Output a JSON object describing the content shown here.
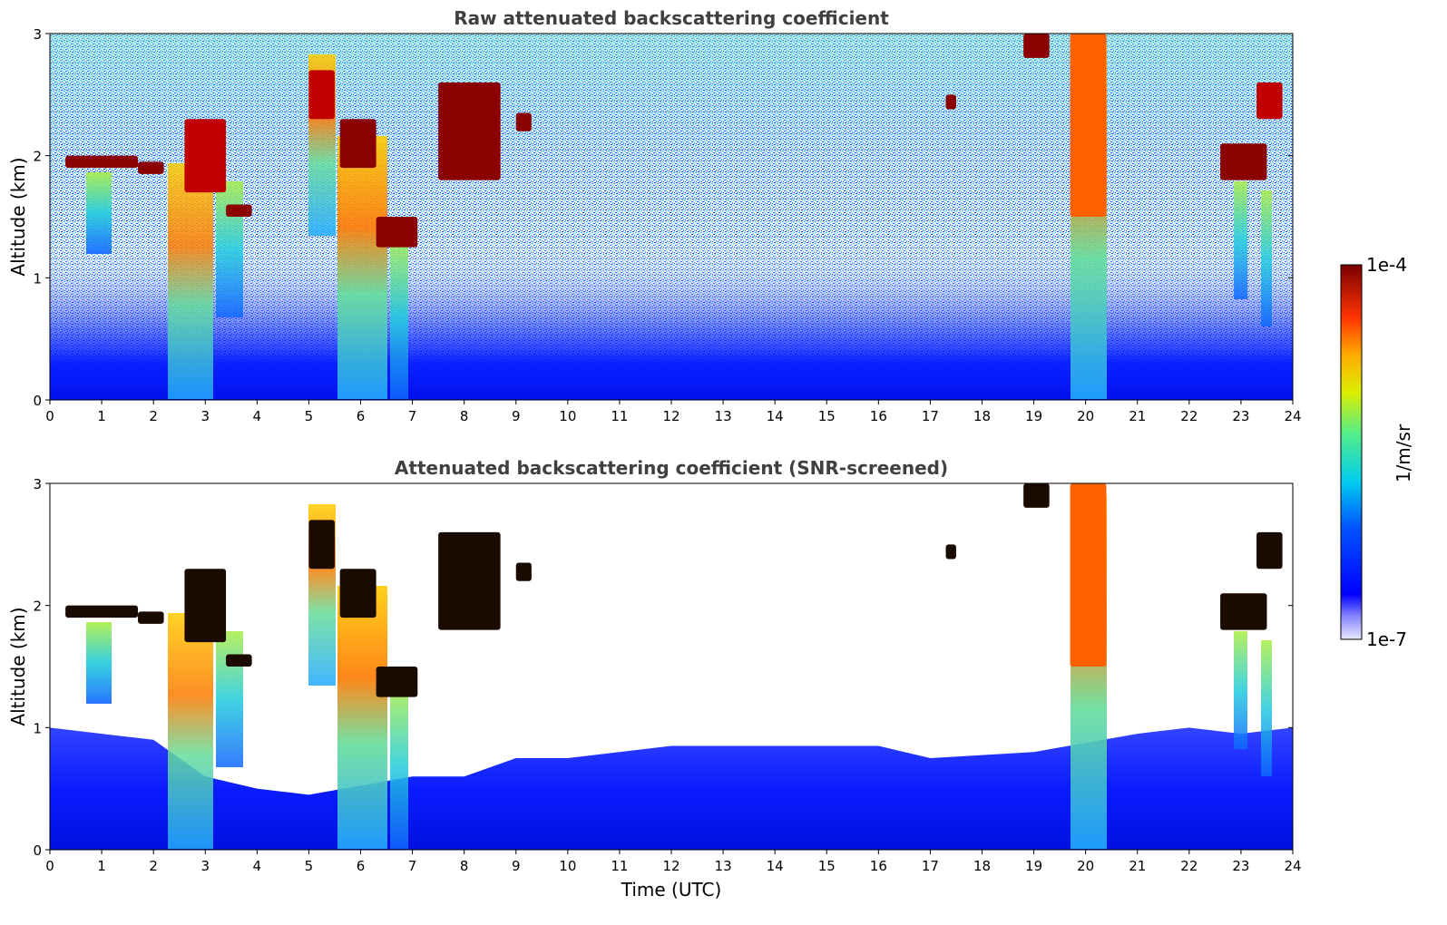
{
  "chart_data": [
    {
      "type": "heatmap",
      "title": "Raw attenuated backscattering coefficient",
      "xlabel": "",
      "ylabel": "Altitude (km)",
      "xlim": [
        0,
        24
      ],
      "ylim": [
        0,
        3
      ],
      "x_ticks": [
        "0",
        "1",
        "2",
        "3",
        "4",
        "5",
        "6",
        "7",
        "8",
        "9",
        "10",
        "11",
        "12",
        "13",
        "14",
        "15",
        "16",
        "17",
        "18",
        "19",
        "20",
        "21",
        "22",
        "23",
        "24"
      ],
      "y_ticks": [
        "0",
        "1",
        "2",
        "3"
      ],
      "colormap": "jet",
      "color_scale": "log",
      "color_range": [
        "1e-7",
        "1e-4"
      ],
      "cloud_layers": [
        {
          "t": [
            0.3,
            1.7
          ],
          "alt_km": [
            1.9,
            2.0
          ],
          "color": "#8b0000"
        },
        {
          "t": [
            1.7,
            2.2
          ],
          "alt_km": [
            1.85,
            1.95
          ],
          "color": "#8b0000"
        },
        {
          "t": [
            2.6,
            3.4
          ],
          "alt_km": [
            1.7,
            2.3
          ],
          "color": "#c00000"
        },
        {
          "t": [
            3.4,
            3.9
          ],
          "alt_km": [
            1.5,
            1.6
          ],
          "color": "#8b0000"
        },
        {
          "t": [
            5.0,
            5.5
          ],
          "alt_km": [
            2.3,
            2.7
          ],
          "color": "#c00000"
        },
        {
          "t": [
            5.6,
            6.3
          ],
          "alt_km": [
            1.9,
            2.3
          ],
          "color": "#8b0000"
        },
        {
          "t": [
            6.3,
            7.1
          ],
          "alt_km": [
            1.25,
            1.5
          ],
          "color": "#8b0000"
        },
        {
          "t": [
            7.5,
            8.7
          ],
          "alt_km": [
            1.8,
            2.6
          ],
          "color": "#8b0000"
        },
        {
          "t": [
            9.0,
            9.3
          ],
          "alt_km": [
            2.2,
            2.35
          ],
          "color": "#8b0000"
        },
        {
          "t": [
            17.3,
            17.5
          ],
          "alt_km": [
            2.38,
            2.5
          ],
          "color": "#8b0000"
        },
        {
          "t": [
            18.8,
            19.3
          ],
          "alt_km": [
            2.8,
            3.0
          ],
          "color": "#8b0000"
        },
        {
          "t": [
            19.7,
            20.4
          ],
          "alt_km": [
            1.5,
            3.0
          ],
          "color": "#ff6000"
        },
        {
          "t": [
            22.6,
            23.5
          ],
          "alt_km": [
            1.8,
            2.1
          ],
          "color": "#8b0000"
        },
        {
          "t": [
            23.3,
            23.8
          ],
          "alt_km": [
            2.3,
            2.6
          ],
          "color": "#c00000"
        }
      ]
    },
    {
      "type": "heatmap",
      "title": "Attenuated backscattering coefficient (SNR-screened)",
      "xlabel": "Time (UTC)",
      "ylabel": "Altitude (km)",
      "xlim": [
        0,
        24
      ],
      "ylim": [
        0,
        3
      ],
      "x_ticks": [
        "0",
        "1",
        "2",
        "3",
        "4",
        "5",
        "6",
        "7",
        "8",
        "9",
        "10",
        "11",
        "12",
        "13",
        "14",
        "15",
        "16",
        "17",
        "18",
        "19",
        "20",
        "21",
        "22",
        "23",
        "24"
      ],
      "y_ticks": [
        "0",
        "1",
        "2",
        "3"
      ],
      "colormap": "jet",
      "color_scale": "log",
      "color_range": [
        "1e-7",
        "1e-4"
      ],
      "screened_boundary_km": [
        {
          "t": 0,
          "alt": 1.0
        },
        {
          "t": 2,
          "alt": 0.9
        },
        {
          "t": 3,
          "alt": 0.6
        },
        {
          "t": 4,
          "alt": 0.5
        },
        {
          "t": 5,
          "alt": 0.45
        },
        {
          "t": 7,
          "alt": 0.6
        },
        {
          "t": 8,
          "alt": 0.6
        },
        {
          "t": 9,
          "alt": 0.75
        },
        {
          "t": 10,
          "alt": 0.75
        },
        {
          "t": 12,
          "alt": 0.85
        },
        {
          "t": 14,
          "alt": 0.85
        },
        {
          "t": 16,
          "alt": 0.85
        },
        {
          "t": 17,
          "alt": 0.75
        },
        {
          "t": 19,
          "alt": 0.8
        },
        {
          "t": 21,
          "alt": 0.95
        },
        {
          "t": 22,
          "alt": 1.0
        },
        {
          "t": 23,
          "alt": 0.95
        },
        {
          "t": 24,
          "alt": 1.0
        }
      ]
    }
  ],
  "colorbar": {
    "label": "1/m/sr",
    "max_label": "1e-4",
    "min_label": "1e-7"
  }
}
